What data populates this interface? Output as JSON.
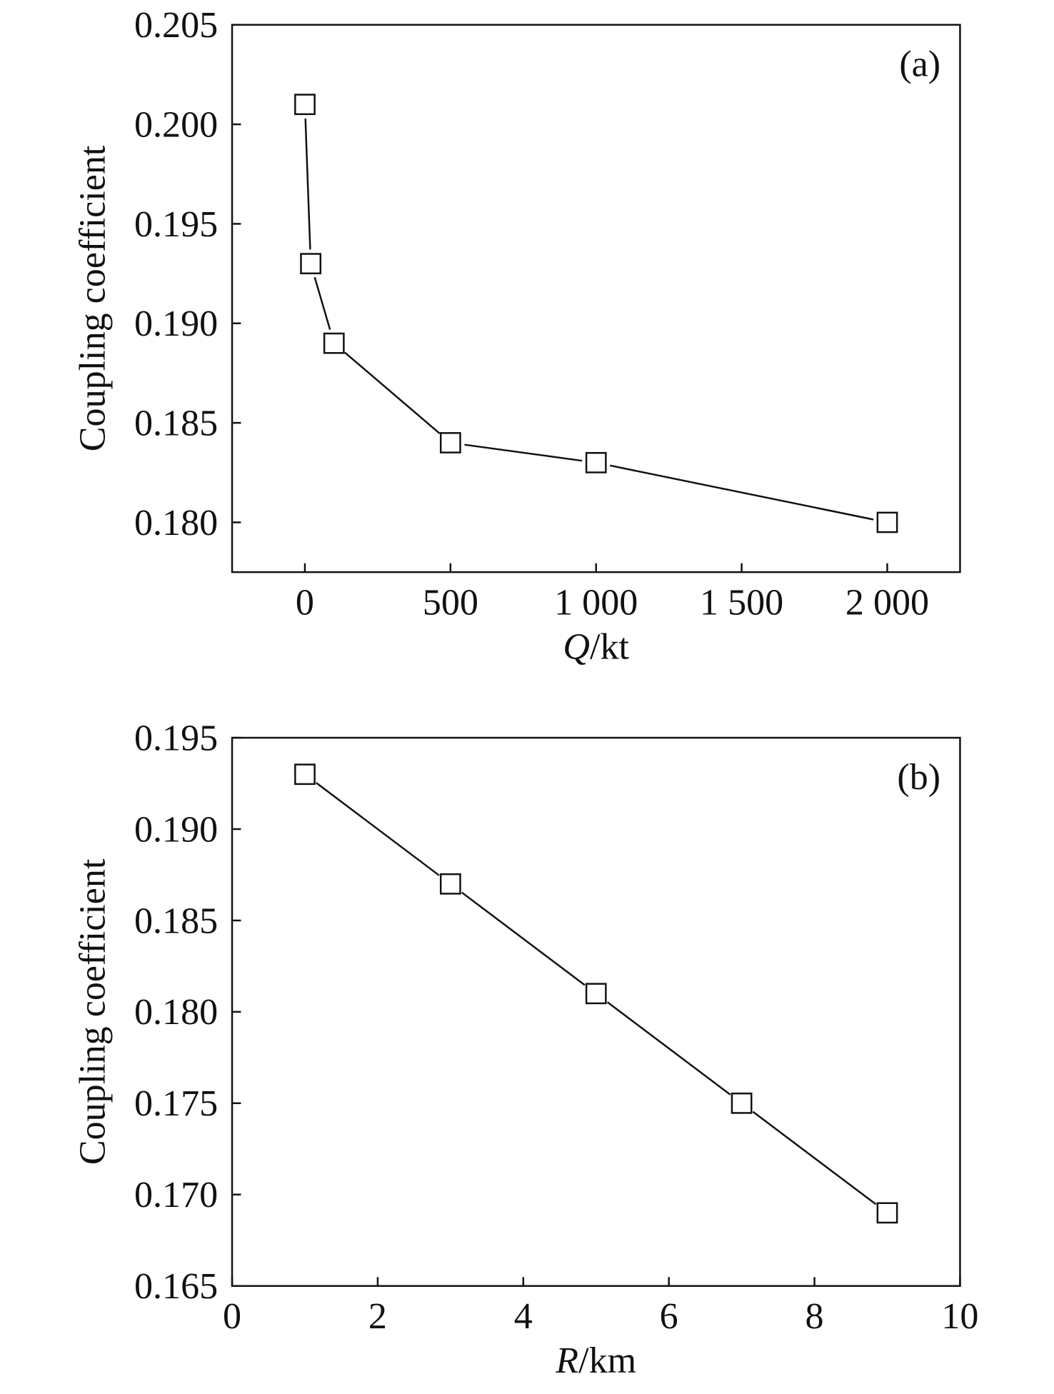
{
  "chart_data": [
    {
      "type": "line",
      "panel_label": "(a)",
      "xlabel_italic": "Q",
      "xlabel_unit": "/kt",
      "ylabel": "Coupling coefficient",
      "xlim": [
        -250,
        2250
      ],
      "ylim": [
        0.1775,
        0.205
      ],
      "xticks": [
        0,
        500,
        1000,
        1500,
        2000
      ],
      "xtick_labels": [
        "0",
        "500",
        "1 000",
        "1 500",
        "2 000"
      ],
      "yticks": [
        0.18,
        0.185,
        0.19,
        0.195,
        0.2,
        0.205
      ],
      "ytick_labels": [
        "0.180",
        "0.185",
        "0.190",
        "0.195",
        "0.200",
        "0.205"
      ],
      "grid": false,
      "marker": "open-square",
      "series": [
        {
          "name": "Q",
          "x": [
            0,
            20,
            100,
            500,
            1000,
            2000
          ],
          "y": [
            0.201,
            0.193,
            0.189,
            0.184,
            0.183,
            0.18
          ]
        }
      ]
    },
    {
      "type": "line",
      "panel_label": "(b)",
      "xlabel_italic": "R",
      "xlabel_unit": "/km",
      "ylabel": "Coupling coefficient",
      "xlim": [
        0,
        10
      ],
      "ylim": [
        0.165,
        0.195
      ],
      "xticks": [
        0,
        2,
        4,
        6,
        8,
        10
      ],
      "xtick_labels": [
        "0",
        "2",
        "4",
        "6",
        "8",
        "10"
      ],
      "yticks": [
        0.165,
        0.17,
        0.175,
        0.18,
        0.185,
        0.19,
        0.195
      ],
      "ytick_labels": [
        "0.165",
        "0.170",
        "0.175",
        "0.180",
        "0.185",
        "0.190",
        "0.195"
      ],
      "grid": false,
      "marker": "open-square",
      "series": [
        {
          "name": "R",
          "x": [
            1,
            3,
            5,
            7,
            9
          ],
          "y": [
            0.193,
            0.187,
            0.181,
            0.175,
            0.169
          ]
        }
      ]
    }
  ]
}
